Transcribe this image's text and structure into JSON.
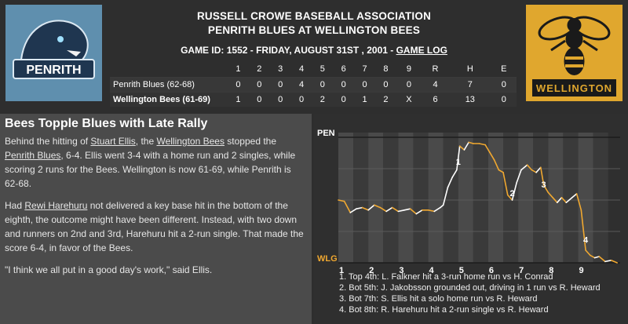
{
  "header": {
    "association": "RUSSELL CROWE BASEBALL ASSOCIATION",
    "matchup": "PENRITH BLUES AT WELLINGTON BEES",
    "game_info": "GAME ID: 1552 - FRIDAY, AUGUST 31ST , 2001 - ",
    "game_log_link": "GAME LOG"
  },
  "logos": {
    "home_text": "WELLINGTON",
    "away_text": "PENRITH"
  },
  "linescore": {
    "columns": [
      "1",
      "2",
      "3",
      "4",
      "5",
      "6",
      "7",
      "8",
      "9",
      "R",
      "H",
      "E"
    ],
    "away": {
      "team": "Penrith Blues (62-68)",
      "cells": [
        "0",
        "0",
        "0",
        "4",
        "0",
        "0",
        "0",
        "0",
        "0",
        "4",
        "7",
        "0"
      ]
    },
    "home": {
      "team": "Wellington Bees (61-69)",
      "cells": [
        "1",
        "0",
        "0",
        "0",
        "2",
        "0",
        "1",
        "2",
        "X",
        "6",
        "13",
        "0"
      ]
    }
  },
  "story": {
    "headline": "Bees Topple Blues with Late Rally",
    "p1_a": "Behind the hitting of ",
    "p1_link1": "Stuart Ellis",
    "p1_b": ", the ",
    "p1_link2": "Wellington Bees",
    "p1_c": " stopped the ",
    "p1_link3": "Penrith Blues",
    "p1_d": ", 6-4. Ellis went 3-4 with a home run and 2 singles, while scoring 2 runs for the Bees. Wellington is now 61-69, while Penrith is 62-68.",
    "p2_a": "Had ",
    "p2_link": "Rewi Harehuru",
    "p2_b": " not delivered a key base hit in the bottom of the eighth, the outcome might have been different. Instead, with two down and runners on 2nd and 3rd, Harehuru hit a 2-run single. That made the score 6-4, in favor of the Bees.",
    "p3": "\"I think we all put in a good day's work,\" said Ellis."
  },
  "chart_data": {
    "type": "line",
    "top_label": "PEN",
    "bottom_label": "WLG",
    "x_tick_labels": [
      "1",
      "2",
      "3",
      "4",
      "5",
      "6",
      "7",
      "8",
      "9"
    ],
    "colors": {
      "home": "#f0a830",
      "away": "#ffffff",
      "band_dark": "#4a4a4a",
      "band_light": "#3a3a3a"
    },
    "x_range": [
      0.5,
      9.9
    ],
    "y_range": [
      0,
      1
    ],
    "series": [
      {
        "x": 0.5,
        "y": 0.5
      },
      {
        "x": 0.7,
        "y": 0.49
      },
      {
        "x": 0.9,
        "y": 0.4
      },
      {
        "x": 1.1,
        "y": 0.43
      },
      {
        "x": 1.3,
        "y": 0.44
      },
      {
        "x": 1.5,
        "y": 0.42
      },
      {
        "x": 1.7,
        "y": 0.46
      },
      {
        "x": 1.9,
        "y": 0.44
      },
      {
        "x": 2.1,
        "y": 0.41
      },
      {
        "x": 2.3,
        "y": 0.44
      },
      {
        "x": 2.5,
        "y": 0.41
      },
      {
        "x": 2.7,
        "y": 0.42
      },
      {
        "x": 2.9,
        "y": 0.43
      },
      {
        "x": 3.1,
        "y": 0.39
      },
      {
        "x": 3.3,
        "y": 0.42
      },
      {
        "x": 3.5,
        "y": 0.42
      },
      {
        "x": 3.7,
        "y": 0.41
      },
      {
        "x": 3.9,
        "y": 0.44
      },
      {
        "x": 4.0,
        "y": 0.46
      },
      {
        "x": 4.15,
        "y": 0.6
      },
      {
        "x": 4.3,
        "y": 0.68
      },
      {
        "x": 4.45,
        "y": 0.74
      },
      {
        "x": 4.55,
        "y": 0.93
      },
      {
        "x": 4.7,
        "y": 0.9
      },
      {
        "x": 4.85,
        "y": 0.96
      },
      {
        "x": 5.0,
        "y": 0.95
      },
      {
        "x": 5.2,
        "y": 0.95
      },
      {
        "x": 5.4,
        "y": 0.94
      },
      {
        "x": 5.55,
        "y": 0.88
      },
      {
        "x": 5.7,
        "y": 0.82
      },
      {
        "x": 5.85,
        "y": 0.74
      },
      {
        "x": 6.0,
        "y": 0.72
      },
      {
        "x": 6.15,
        "y": 0.54
      },
      {
        "x": 6.3,
        "y": 0.5
      },
      {
        "x": 6.45,
        "y": 0.64
      },
      {
        "x": 6.6,
        "y": 0.74
      },
      {
        "x": 6.8,
        "y": 0.78
      },
      {
        "x": 6.95,
        "y": 0.74
      },
      {
        "x": 7.1,
        "y": 0.72
      },
      {
        "x": 7.25,
        "y": 0.76
      },
      {
        "x": 7.35,
        "y": 0.62
      },
      {
        "x": 7.5,
        "y": 0.56
      },
      {
        "x": 7.65,
        "y": 0.52
      },
      {
        "x": 7.8,
        "y": 0.48
      },
      {
        "x": 7.95,
        "y": 0.52
      },
      {
        "x": 8.1,
        "y": 0.48
      },
      {
        "x": 8.3,
        "y": 0.52
      },
      {
        "x": 8.45,
        "y": 0.55
      },
      {
        "x": 8.6,
        "y": 0.42
      },
      {
        "x": 8.75,
        "y": 0.1
      },
      {
        "x": 8.9,
        "y": 0.06
      },
      {
        "x": 9.05,
        "y": 0.04
      },
      {
        "x": 9.2,
        "y": 0.05
      },
      {
        "x": 9.4,
        "y": 0.01
      },
      {
        "x": 9.6,
        "y": 0.02
      },
      {
        "x": 9.8,
        "y": 0.0
      }
    ],
    "markers": [
      {
        "label": "1",
        "x": 4.5,
        "y": 0.78
      },
      {
        "label": "2",
        "x": 6.3,
        "y": 0.53
      },
      {
        "label": "3",
        "x": 7.35,
        "y": 0.6
      },
      {
        "label": "4",
        "x": 8.75,
        "y": 0.16
      }
    ],
    "events": [
      "1. Top 4th: L. Falkner hit a 3-run home run vs H. Conrad",
      "2. Bot 5th: J. Jakobsson grounded out, driving in 1 run vs R. Heward",
      "3. Bot 7th: S. Ellis hit a solo home run vs R. Heward",
      "4. Bot 8th: R. Harehuru hit a 2-run single vs R. Heward"
    ]
  }
}
